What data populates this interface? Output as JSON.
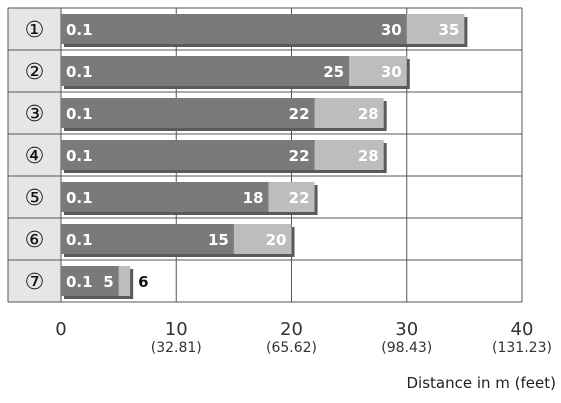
{
  "chart_data": {
    "type": "bar",
    "orientation": "horizontal",
    "categories": [
      "①",
      "②",
      "③",
      "④",
      "⑤",
      "⑥",
      "⑦"
    ],
    "min_values": [
      0.1,
      0.1,
      0.1,
      0.1,
      0.1,
      0.1,
      0.1
    ],
    "series": [
      {
        "values": [
          30,
          25,
          22,
          22,
          18,
          15,
          5
        ],
        "color": "#7a7a7a"
      },
      {
        "values": [
          35,
          30,
          28,
          28,
          22,
          20,
          6
        ],
        "color": "#bdbdbd"
      }
    ],
    "xlabel": "Distance in m (feet)",
    "xlim": [
      0,
      40
    ],
    "x_ticks": [
      {
        "value": 0,
        "label": "0",
        "sub": ""
      },
      {
        "value": 10,
        "label": "10",
        "sub": "(32.81)"
      },
      {
        "value": 20,
        "label": "20",
        "sub": "(65.62)"
      },
      {
        "value": 30,
        "label": "30",
        "sub": "(98.43)"
      },
      {
        "value": 40,
        "label": "40",
        "sub": "(131.23)"
      }
    ],
    "grid": true,
    "colors": {
      "row_label_bg": "#e6e6e6",
      "dark_bar": "#7a7a7a",
      "light_bar": "#bdbdbd",
      "shadow": "#5a5a5a",
      "grid": "#555555"
    }
  }
}
